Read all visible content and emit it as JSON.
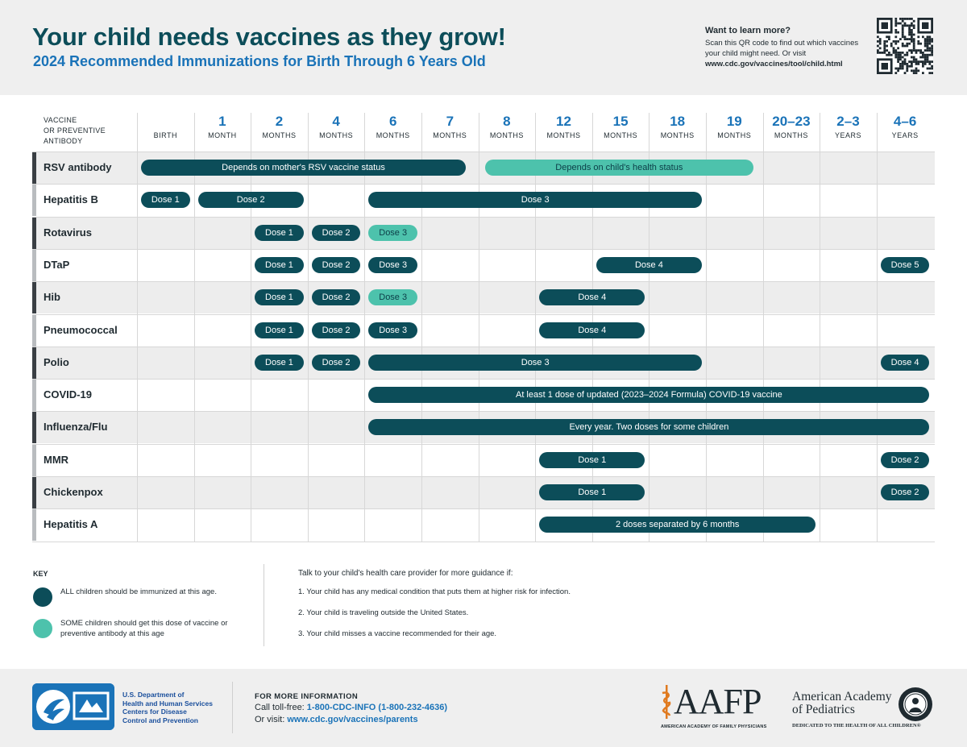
{
  "header": {
    "title": "Your child needs vaccines as they grow!",
    "subtitle": "2024 Recommended Immunizations for Birth Through 6 Years Old",
    "learn_more": {
      "heading": "Want to learn more?",
      "text": "Scan this QR code to find out which vaccines your child might need. Or visit",
      "url": "www.cdc.gov/vaccines/tool/child.html"
    }
  },
  "table": {
    "vaccine_column_header": [
      "VACCINE",
      "OR PREVENTIVE",
      "ANTIBODY"
    ],
    "columns": [
      {
        "num": "",
        "unit": "BIRTH"
      },
      {
        "num": "1",
        "unit": "MONTH"
      },
      {
        "num": "2",
        "unit": "MONTHS"
      },
      {
        "num": "4",
        "unit": "MONTHS"
      },
      {
        "num": "6",
        "unit": "MONTHS"
      },
      {
        "num": "7",
        "unit": "MONTHS"
      },
      {
        "num": "8",
        "unit": "MONTHS"
      },
      {
        "num": "12",
        "unit": "MONTHS"
      },
      {
        "num": "15",
        "unit": "MONTHS"
      },
      {
        "num": "18",
        "unit": "MONTHS"
      },
      {
        "num": "19",
        "unit": "MONTHS"
      },
      {
        "num": "20–23",
        "unit": "MONTHS"
      },
      {
        "num": "2–3",
        "unit": "YEARS"
      },
      {
        "num": "4–6",
        "unit": "YEARS"
      }
    ],
    "rows": [
      {
        "name": "RSV antibody",
        "marker": "dark",
        "doses": [
          {
            "label": "Depends on mother's RSV vaccine status",
            "start": 0,
            "end": 5.85,
            "type": "all"
          },
          {
            "label": "Depends on child's health status",
            "start": 6.05,
            "end": 10.9,
            "type": "some"
          }
        ]
      },
      {
        "name": "Hepatitis B",
        "marker": "light",
        "doses": [
          {
            "label": "Dose 1",
            "start": 0,
            "end": 1,
            "type": "all"
          },
          {
            "label": "Dose 2",
            "start": 1,
            "end": 3,
            "type": "all"
          },
          {
            "label": "Dose 3",
            "start": 4,
            "end": 10,
            "type": "all"
          }
        ]
      },
      {
        "name": "Rotavirus",
        "marker": "dark",
        "doses": [
          {
            "label": "Dose 1",
            "start": 2,
            "end": 3,
            "type": "all"
          },
          {
            "label": "Dose 2",
            "start": 3,
            "end": 4,
            "type": "all"
          },
          {
            "label": "Dose 3",
            "start": 4,
            "end": 5,
            "type": "some"
          }
        ]
      },
      {
        "name": "DTaP",
        "marker": "light",
        "doses": [
          {
            "label": "Dose 1",
            "start": 2,
            "end": 3,
            "type": "all"
          },
          {
            "label": "Dose 2",
            "start": 3,
            "end": 4,
            "type": "all"
          },
          {
            "label": "Dose 3",
            "start": 4,
            "end": 5,
            "type": "all"
          },
          {
            "label": "Dose 4",
            "start": 8,
            "end": 10,
            "type": "all"
          },
          {
            "label": "Dose 5",
            "start": 13,
            "end": 14,
            "type": "all"
          }
        ]
      },
      {
        "name": "Hib",
        "marker": "dark",
        "doses": [
          {
            "label": "Dose 1",
            "start": 2,
            "end": 3,
            "type": "all"
          },
          {
            "label": "Dose 2",
            "start": 3,
            "end": 4,
            "type": "all"
          },
          {
            "label": "Dose 3",
            "start": 4,
            "end": 5,
            "type": "some"
          },
          {
            "label": "Dose 4",
            "start": 7,
            "end": 9,
            "type": "all"
          }
        ]
      },
      {
        "name": "Pneumococcal",
        "marker": "light",
        "doses": [
          {
            "label": "Dose 1",
            "start": 2,
            "end": 3,
            "type": "all"
          },
          {
            "label": "Dose 2",
            "start": 3,
            "end": 4,
            "type": "all"
          },
          {
            "label": "Dose 3",
            "start": 4,
            "end": 5,
            "type": "all"
          },
          {
            "label": "Dose 4",
            "start": 7,
            "end": 9,
            "type": "all"
          }
        ]
      },
      {
        "name": "Polio",
        "marker": "dark",
        "doses": [
          {
            "label": "Dose 1",
            "start": 2,
            "end": 3,
            "type": "all"
          },
          {
            "label": "Dose 2",
            "start": 3,
            "end": 4,
            "type": "all"
          },
          {
            "label": "Dose 3",
            "start": 4,
            "end": 10,
            "type": "all"
          },
          {
            "label": "Dose 4",
            "start": 13,
            "end": 14,
            "type": "all"
          }
        ]
      },
      {
        "name": "COVID-19",
        "marker": "light",
        "doses": [
          {
            "label": "At least 1 dose of updated (2023–2024 Formula) COVID-19 vaccine",
            "start": 4,
            "end": 14,
            "type": "all"
          }
        ]
      },
      {
        "name": "Influenza/Flu",
        "marker": "dark",
        "doses": [
          {
            "label": "Every year. Two doses for some children",
            "start": 4,
            "end": 14,
            "type": "all"
          }
        ]
      },
      {
        "name": "MMR",
        "marker": "light",
        "doses": [
          {
            "label": "Dose 1",
            "start": 7,
            "end": 9,
            "type": "all"
          },
          {
            "label": "Dose 2",
            "start": 13,
            "end": 14,
            "type": "all"
          }
        ]
      },
      {
        "name": "Chickenpox",
        "marker": "dark",
        "doses": [
          {
            "label": "Dose 1",
            "start": 7,
            "end": 9,
            "type": "all"
          },
          {
            "label": "Dose 2",
            "start": 13,
            "end": 14,
            "type": "all"
          }
        ]
      },
      {
        "name": "Hepatitis A",
        "marker": "light",
        "doses": [
          {
            "label": "2 doses separated by 6 months",
            "start": 7,
            "end": 12,
            "type": "all"
          }
        ]
      }
    ]
  },
  "key": {
    "title": "KEY",
    "all_text": "ALL children should be immunized at this age.",
    "some_text": "SOME children should get this dose of vaccine or preventive antibody at this age"
  },
  "guidance": {
    "heading": "Talk to your child's health care provider for more guidance if:",
    "items": [
      "1. Your child has any medical condition that puts them at higher risk for infection.",
      "2. Your child is traveling outside the United States.",
      "3. Your child misses a vaccine recommended for their age."
    ]
  },
  "footer": {
    "hhs_lines": [
      "U.S. Department of",
      "Health and Human Services",
      "Centers for Disease",
      "Control and Prevention"
    ],
    "more_info_heading": "FOR MORE INFORMATION",
    "call_prefix": "Call toll-free: ",
    "call_number": "1-800-CDC-INFO (1-800-232-4636)",
    "visit_prefix": "Or visit: ",
    "visit_url": "www.cdc.gov/vaccines/parents",
    "aafp_word": "AAFP",
    "aafp_sub": "AMERICAN ACADEMY OF FAMILY PHYSICIANS",
    "aap_lines": [
      "American Academy",
      "of Pediatrics"
    ],
    "aap_sub": "DEDICATED TO THE HEALTH OF ALL CHILDREN®"
  },
  "colors": {
    "all": "#0c4d59",
    "some": "#4dc2ac",
    "title": "#0c4d59",
    "accent": "#1a73b8"
  }
}
